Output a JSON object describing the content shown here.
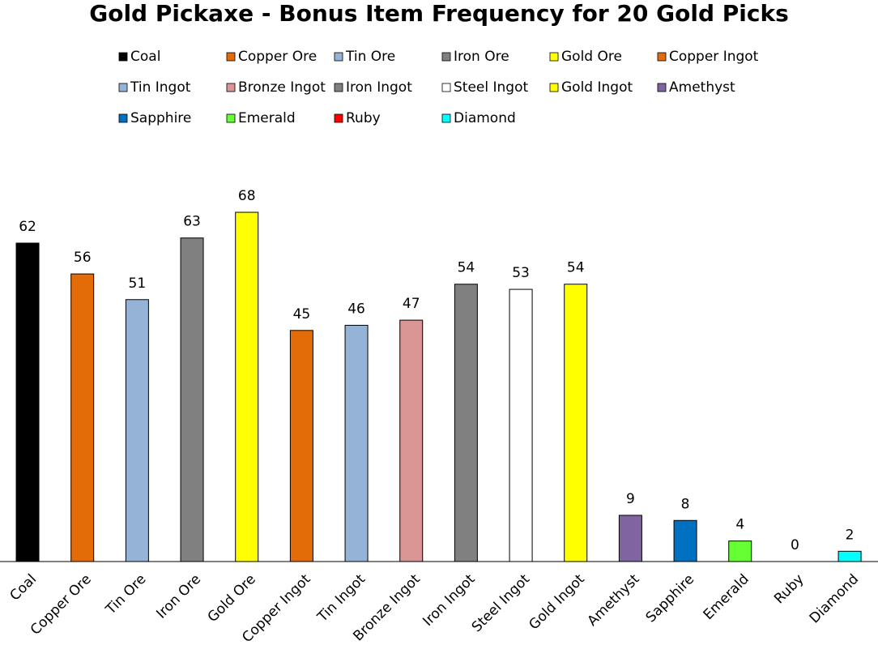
{
  "chart_data": {
    "type": "bar",
    "title": "Gold Pickaxe - Bonus Item Frequency for 20 Gold Picks",
    "categories": [
      "Coal",
      "Copper Ore",
      "Tin Ore",
      "Iron Ore",
      "Gold Ore",
      "Copper Ingot",
      "Tin Ingot",
      "Bronze Ingot",
      "Iron Ingot",
      "Steel Ingot",
      "Gold Ingot",
      "Amethyst",
      "Sapphire",
      "Emerald",
      "Ruby",
      "Diamond"
    ],
    "values": [
      62,
      56,
      51,
      63,
      68,
      45,
      46,
      47,
      54,
      53,
      54,
      9,
      8,
      4,
      0,
      2
    ],
    "colors": [
      "#000000",
      "#e36c09",
      "#95b3d7",
      "#808080",
      "#ffff00",
      "#e36c09",
      "#95b3d7",
      "#d99694",
      "#808080",
      "#ffffff",
      "#ffff00",
      "#8064a2",
      "#0070c0",
      "#66ff33",
      "#ff0000",
      "#00ffff"
    ],
    "legend": true
  }
}
